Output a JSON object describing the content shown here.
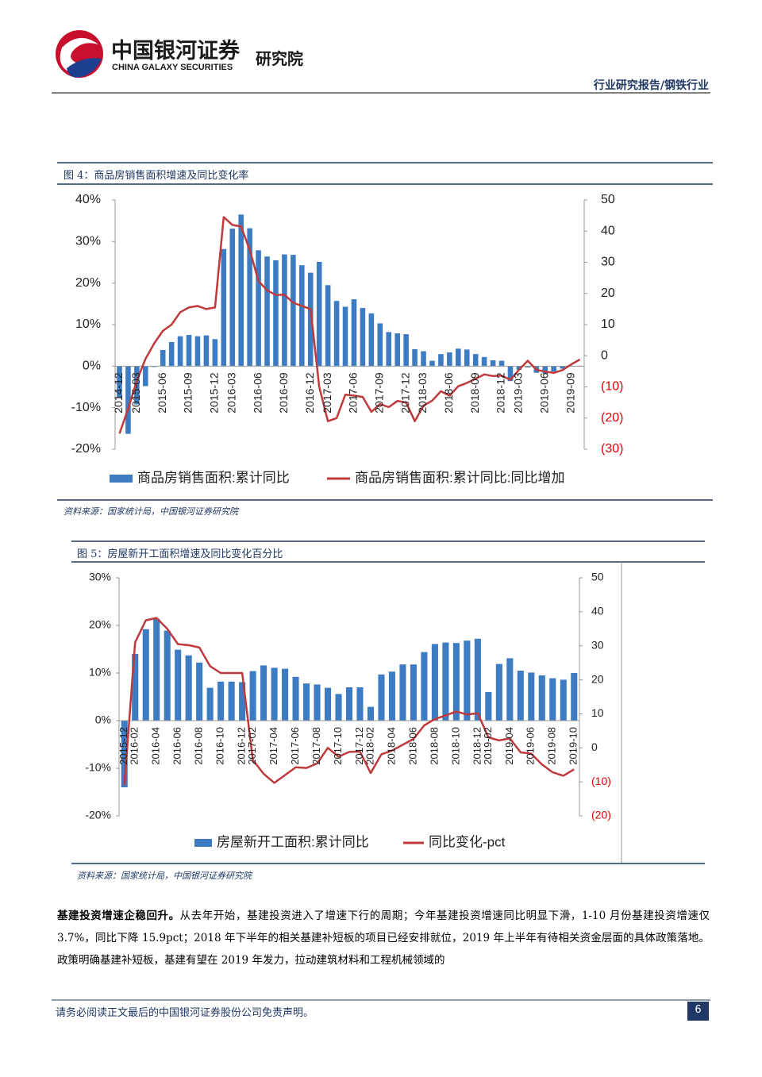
{
  "header": {
    "brand_cn": "中国银河证券",
    "brand_en": "CHINA GALAXY SECURITIES",
    "institute": "研究院",
    "section": "行业研究报告/钢铁行业"
  },
  "figures": [
    {
      "caption": "图 4：商品房销售面积增速及同比变化率",
      "source": "资料来源：国家统计局，中国银河证券研究院"
    },
    {
      "caption": "图 5：房屋新开工面积增速及同比变化百分比",
      "source": "资料来源：国家统计局，中国银河证券研究院"
    }
  ],
  "paragraph": {
    "lead": "基建投资增速企稳回升。",
    "text": "从去年开始，基建投资进入了增速下行的周期；今年基建投资增速同比明显下滑，1-10 月份基建投资增速仅 3.7%，同比下降 15.9pct；2018 年下半年的相关基建补短板的项目已经安排就位，2019 年上半年有待相关资金层面的具体政策落地。政策明确基建补短板，基建有望在 2019 年发力，拉动建筑材料和工程机械领域的"
  },
  "footer": {
    "disclaimer": "请务必阅读正文最后的中国银河证券股份公司免责声明。",
    "page": "6"
  },
  "chart_data": [
    {
      "type": "combo",
      "categories": [
        "2014-12",
        null,
        "2015-03",
        null,
        null,
        "2015-06",
        null,
        null,
        "2015-09",
        null,
        null,
        "2015-12",
        null,
        "2016-03",
        null,
        null,
        "2016-06",
        null,
        null,
        "2016-09",
        null,
        null,
        "2016-12",
        null,
        "2017-03",
        null,
        null,
        "2017-06",
        null,
        null,
        "2017-09",
        null,
        null,
        "2017-12",
        null,
        "2018-03",
        null,
        null,
        "2018-06",
        null,
        null,
        "2018-09",
        null,
        null,
        "2018-12",
        null,
        "2019-03",
        null,
        null,
        "2019-06",
        null,
        null,
        "2019-09",
        null
      ],
      "series": [
        {
          "name": "商品房销售面积:累计同比",
          "type": "bar",
          "color": "#3d7cc2",
          "values": [
            -7.6,
            -16.3,
            -9.2,
            -4.8,
            -0.2,
            3.9,
            5.8,
            7.2,
            7.5,
            7.2,
            7.4,
            6.5,
            28.2,
            33.1,
            36.5,
            33.2,
            27.9,
            26.4,
            25.5,
            26.9,
            26.8,
            24.3,
            22.5,
            25.1,
            19.5,
            15.7,
            14.3,
            16.1,
            14.0,
            12.7,
            10.3,
            8.2,
            7.9,
            7.7,
            4.1,
            3.6,
            1.3,
            2.9,
            3.3,
            4.2,
            4.0,
            2.9,
            2.2,
            1.4,
            1.3,
            -3.6,
            -0.9,
            -0.3,
            -1.6,
            -1.8,
            -1.3,
            -0.6,
            0.1,
            0.1
          ]
        },
        {
          "name": "商品房销售面积:累计同比:同比增加",
          "type": "line",
          "axis": "y2",
          "color": "#c0393b",
          "values": [
            -25,
            -17,
            -8,
            -1,
            4,
            8,
            10,
            14,
            15.5,
            16,
            15,
            15.5,
            44.5,
            42,
            41.5,
            34,
            24,
            21,
            19.5,
            19.6,
            17,
            16,
            15,
            -10,
            -21,
            -20,
            -12.5,
            -12.8,
            -13.2,
            -18,
            -15.5,
            -16.5,
            -14.5,
            -15,
            -21,
            -16,
            -14.4,
            -11.4,
            -12.8,
            -9.8,
            -8.7,
            -7.4,
            -6,
            -6.5,
            -6.4,
            -7.7,
            -4.5,
            -1.6,
            -4.5,
            -5.1,
            -5.5,
            -4.6,
            -2.8,
            -1.2
          ]
        }
      ],
      "ylim": [
        -20,
        40
      ],
      "yticks": [
        {
          "value": -20,
          "label": "-20%"
        },
        {
          "value": -10,
          "label": "-10%"
        },
        {
          "value": 0,
          "label": "0%"
        },
        {
          "value": 10,
          "label": "10%"
        },
        {
          "value": 20,
          "label": "20%"
        },
        {
          "value": 30,
          "label": "30%"
        },
        {
          "value": 40,
          "label": "40%"
        }
      ],
      "y2lim": [
        -30,
        50
      ],
      "y2ticks": [
        {
          "value": -30,
          "label": "(30)"
        },
        {
          "value": -20,
          "label": "(20)"
        },
        {
          "value": -10,
          "label": "(10)"
        },
        0,
        10,
        20,
        30,
        40,
        50
      ],
      "y2_negative_label_color": "#e00000",
      "legend": "bottom"
    },
    {
      "type": "combo",
      "categories": [
        "2015-12",
        "2016-02",
        null,
        "2016-04",
        null,
        "2016-06",
        null,
        "2016-08",
        null,
        "2016-10",
        null,
        "2016-12",
        "2017-02",
        null,
        "2017-04",
        null,
        "2017-06",
        null,
        "2017-08",
        null,
        "2017-10",
        null,
        "2017-12",
        "2018-02",
        null,
        "2018-04",
        null,
        "2018-06",
        null,
        "2018-08",
        null,
        "2018-10",
        null,
        "2018-12",
        "2019-02",
        null,
        "2019-04",
        null,
        "2019-06",
        null,
        "2019-08",
        null,
        "2019-10"
      ],
      "series": [
        {
          "name": "房屋新开工面积:累计同比",
          "type": "bar",
          "color": "#3d7cc2",
          "values": [
            -14,
            14,
            19.2,
            21.4,
            18.9,
            14.9,
            13.7,
            12.2,
            6.9,
            8.2,
            8.2,
            8.1,
            10.4,
            11.6,
            11.1,
            10.9,
            9.2,
            7.8,
            7.6,
            6.9,
            5.6,
            7.0,
            7.0,
            2.9,
            9.7,
            10.3,
            11.8,
            11.8,
            14.4,
            16.1,
            16.4,
            16.3,
            16.8,
            17.2,
            6.0,
            11.9,
            13.1,
            10.5,
            10.1,
            9.5,
            8.9,
            8.6,
            10.0
          ]
        },
        {
          "name": "同比变化-pct",
          "type": "line",
          "axis": "y2",
          "color": "#c0393b",
          "values": [
            -11,
            31,
            37.5,
            38.2,
            35,
            30.5,
            30.2,
            29.5,
            24,
            22,
            22,
            22,
            -3.6,
            -7.6,
            -10.3,
            -8,
            -5.7,
            -5.9,
            -4.6,
            0,
            -2.6,
            -1.2,
            -1.1,
            -7.4,
            -1.9,
            -0.8,
            0.9,
            2.6,
            6.6,
            8.5,
            9.5,
            10.7,
            9.8,
            10.2,
            3.1,
            2.2,
            2.8,
            -1.3,
            -1.7,
            -4.9,
            -7.2,
            -8.2,
            -6.3
          ]
        }
      ],
      "ylim": [
        -20,
        30
      ],
      "yticks": [
        {
          "value": -20,
          "label": "-20%"
        },
        {
          "value": -10,
          "label": "-10%"
        },
        {
          "value": 0,
          "label": "0%"
        },
        {
          "value": 10,
          "label": "10%"
        },
        {
          "value": 20,
          "label": "20%"
        },
        {
          "value": 30,
          "label": "30%"
        }
      ],
      "y2lim": [
        -20,
        50
      ],
      "y2ticks": [
        {
          "value": -20,
          "label": "(20)"
        },
        {
          "value": -10,
          "label": "(10)"
        },
        0,
        10,
        20,
        30,
        40,
        50
      ],
      "y2_negative_label_color": "#e00000",
      "legend": "bottom"
    }
  ]
}
